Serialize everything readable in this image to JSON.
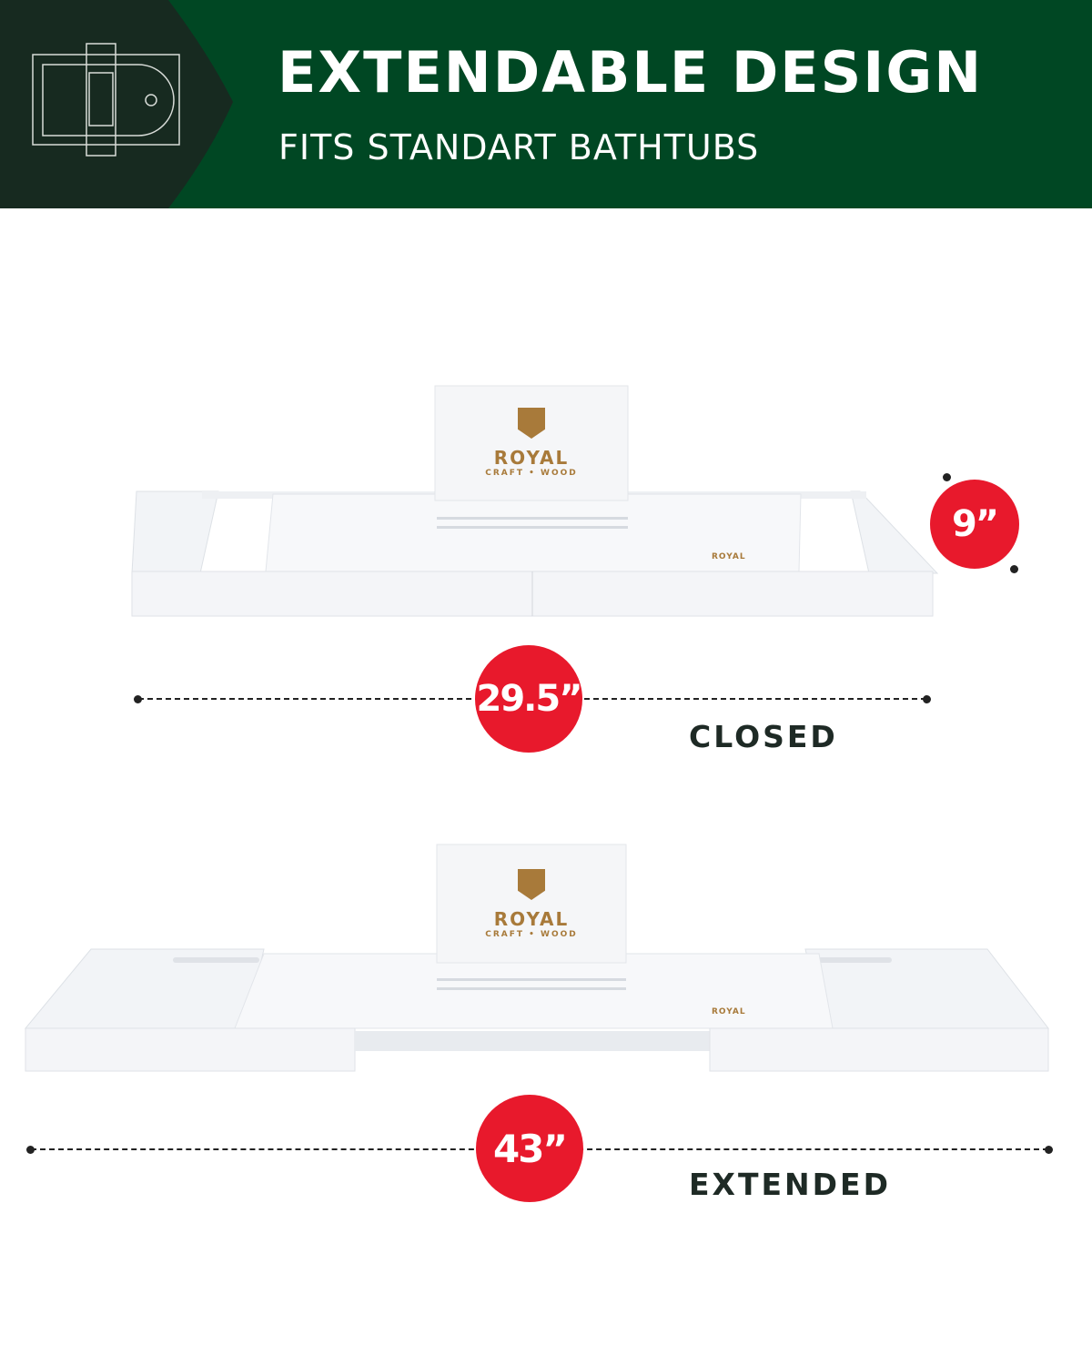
{
  "header": {
    "title": "EXTENDABLE DESIGN",
    "subtitle": "FITS STANDART BATHTUBS",
    "icon": "bathtub-tray-outline-icon",
    "colors": {
      "banner": "#004723",
      "banner_dark": "#172a20",
      "badge": "#e8192c"
    }
  },
  "brand": {
    "name": "ROYAL",
    "tagline": "CRAFT • WOOD"
  },
  "closed": {
    "length": "29.5”",
    "width": "9”",
    "label": "CLOSED"
  },
  "extended": {
    "length": "43”",
    "label": "EXTENDED"
  }
}
